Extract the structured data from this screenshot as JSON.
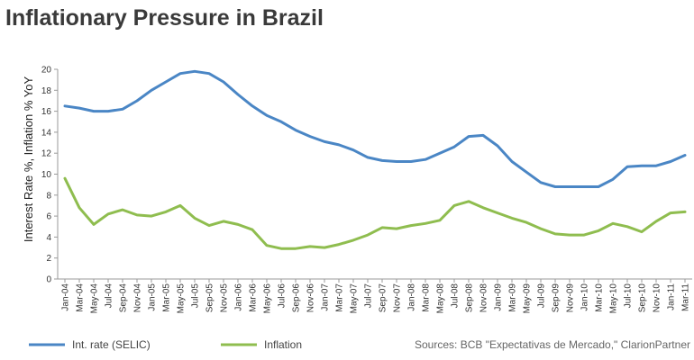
{
  "chart_data": {
    "type": "line",
    "title": "Inflationary Pressure in Brazil",
    "xlabel": "",
    "ylabel": "Interest Rate %, Inflation % YoY",
    "ylim": [
      0,
      20
    ],
    "yticks": [
      0,
      2,
      4,
      6,
      8,
      10,
      12,
      14,
      16,
      18,
      20
    ],
    "grid": false,
    "legend": "bottom-left",
    "x": [
      "Jan-04",
      "Mar-04",
      "May-04",
      "Jul-04",
      "Sep-04",
      "Nov-04",
      "Jan-05",
      "Mar-05",
      "May-05",
      "Jul-05",
      "Sep-05",
      "Nov-05",
      "Jan-06",
      "Mar-06",
      "May-06",
      "Jul-06",
      "Sep-06",
      "Nov-06",
      "Jan-07",
      "Mar-07",
      "May-07",
      "Jul-07",
      "Sep-07",
      "Nov-07",
      "Jan-08",
      "Mar-08",
      "May-08",
      "Jul-08",
      "Sep-08",
      "Nov-08",
      "Jan-09",
      "Mar-09",
      "May-09",
      "Jul-09",
      "Sep-09",
      "Nov-09",
      "Jan-10",
      "Mar-10",
      "May-10",
      "Jul-10",
      "Sep-10",
      "Nov-10",
      "Jan-11",
      "Mar-11"
    ],
    "series": [
      {
        "name": "Int. rate (SELIC)",
        "color": "#4a86c5",
        "values": [
          16.5,
          16.3,
          16.0,
          16.0,
          16.2,
          17.0,
          18.0,
          18.8,
          19.6,
          19.8,
          19.6,
          18.8,
          17.6,
          16.5,
          15.6,
          15.0,
          14.2,
          13.6,
          13.1,
          12.8,
          12.3,
          11.6,
          11.3,
          11.2,
          11.2,
          11.4,
          12.0,
          12.6,
          13.6,
          13.7,
          12.7,
          11.2,
          10.2,
          9.2,
          8.8,
          8.8,
          8.8,
          8.8,
          9.5,
          10.7,
          10.8,
          10.8,
          11.2,
          11.8
        ]
      },
      {
        "name": "Inflation",
        "color": "#8fbd4f",
        "values": [
          9.6,
          6.8,
          5.2,
          6.2,
          6.6,
          6.1,
          6.0,
          6.4,
          7.0,
          5.8,
          5.1,
          5.5,
          5.2,
          4.7,
          3.2,
          2.9,
          2.9,
          3.1,
          3.0,
          3.3,
          3.7,
          4.2,
          4.9,
          4.8,
          5.1,
          5.3,
          5.6,
          7.0,
          7.4,
          6.8,
          6.3,
          5.8,
          5.4,
          4.8,
          4.3,
          4.2,
          4.2,
          4.6,
          5.3,
          5.0,
          4.5,
          5.5,
          6.3,
          6.4
        ]
      }
    ],
    "source": "Sources: BCB \"Expectativas de Mercado,\" ClarionPartner"
  }
}
